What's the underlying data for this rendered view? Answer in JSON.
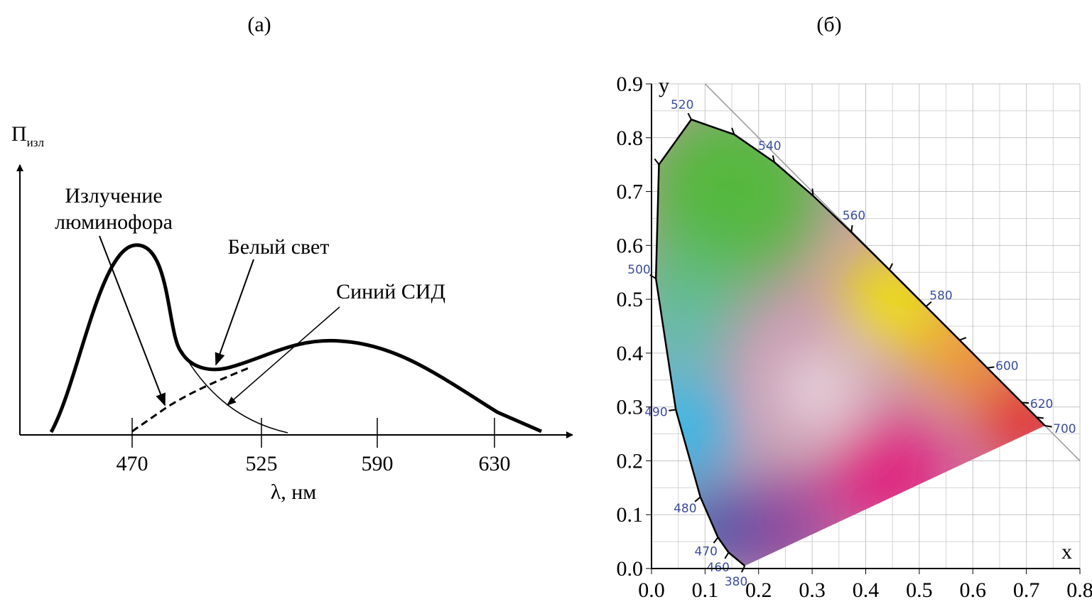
{
  "chart_data": [
    {
      "type": "spectrum",
      "title": "(а)",
      "y_label": "П",
      "y_label_sub": "изл",
      "x_label": "λ, нм",
      "categories": [
        "470",
        "525",
        "590",
        "630"
      ],
      "phosphor_label": [
        "Излучение",
        "люминофора"
      ],
      "white_label": "Белый свет",
      "led_label": "Синий СИД"
    },
    {
      "type": "chromaticity",
      "title": "(б)",
      "x_label": "x",
      "y_label": "y",
      "xlim": [
        0,
        0.8
      ],
      "ylim": [
        0,
        0.9
      ],
      "xticks": [
        {
          "value": 0,
          "label": "0.0"
        },
        0.1,
        0.2,
        0.3,
        0.4,
        0.5,
        0.6,
        0.7,
        0.8
      ],
      "yticks": [
        {
          "value": 0,
          "label": "0.0"
        },
        0.1,
        0.2,
        0.3,
        0.4,
        0.5,
        0.6,
        0.7,
        0.8,
        0.9
      ],
      "grid": true,
      "locus": {
        "x": [
          0.1741,
          0.144,
          0.1241,
          0.0913,
          0.0454,
          0.0082,
          0.0139,
          0.0743,
          0.1547,
          0.2296,
          0.3016,
          0.3731,
          0.4441,
          0.5125,
          0.5752,
          0.627,
          0.6915,
          0.719,
          0.7347
        ],
        "y": [
          0.005,
          0.0297,
          0.0578,
          0.1327,
          0.295,
          0.5384,
          0.7502,
          0.8338,
          0.8059,
          0.7543,
          0.6923,
          0.6245,
          0.5547,
          0.4866,
          0.4242,
          0.3725,
          0.3083,
          0.2809,
          0.2653
        ],
        "labels": [
          "380",
          "460",
          "470",
          "480",
          "490",
          "500",
          null,
          "520",
          null,
          "540",
          null,
          "560",
          null,
          "580",
          null,
          "600",
          "620",
          null,
          "700"
        ]
      }
    }
  ]
}
